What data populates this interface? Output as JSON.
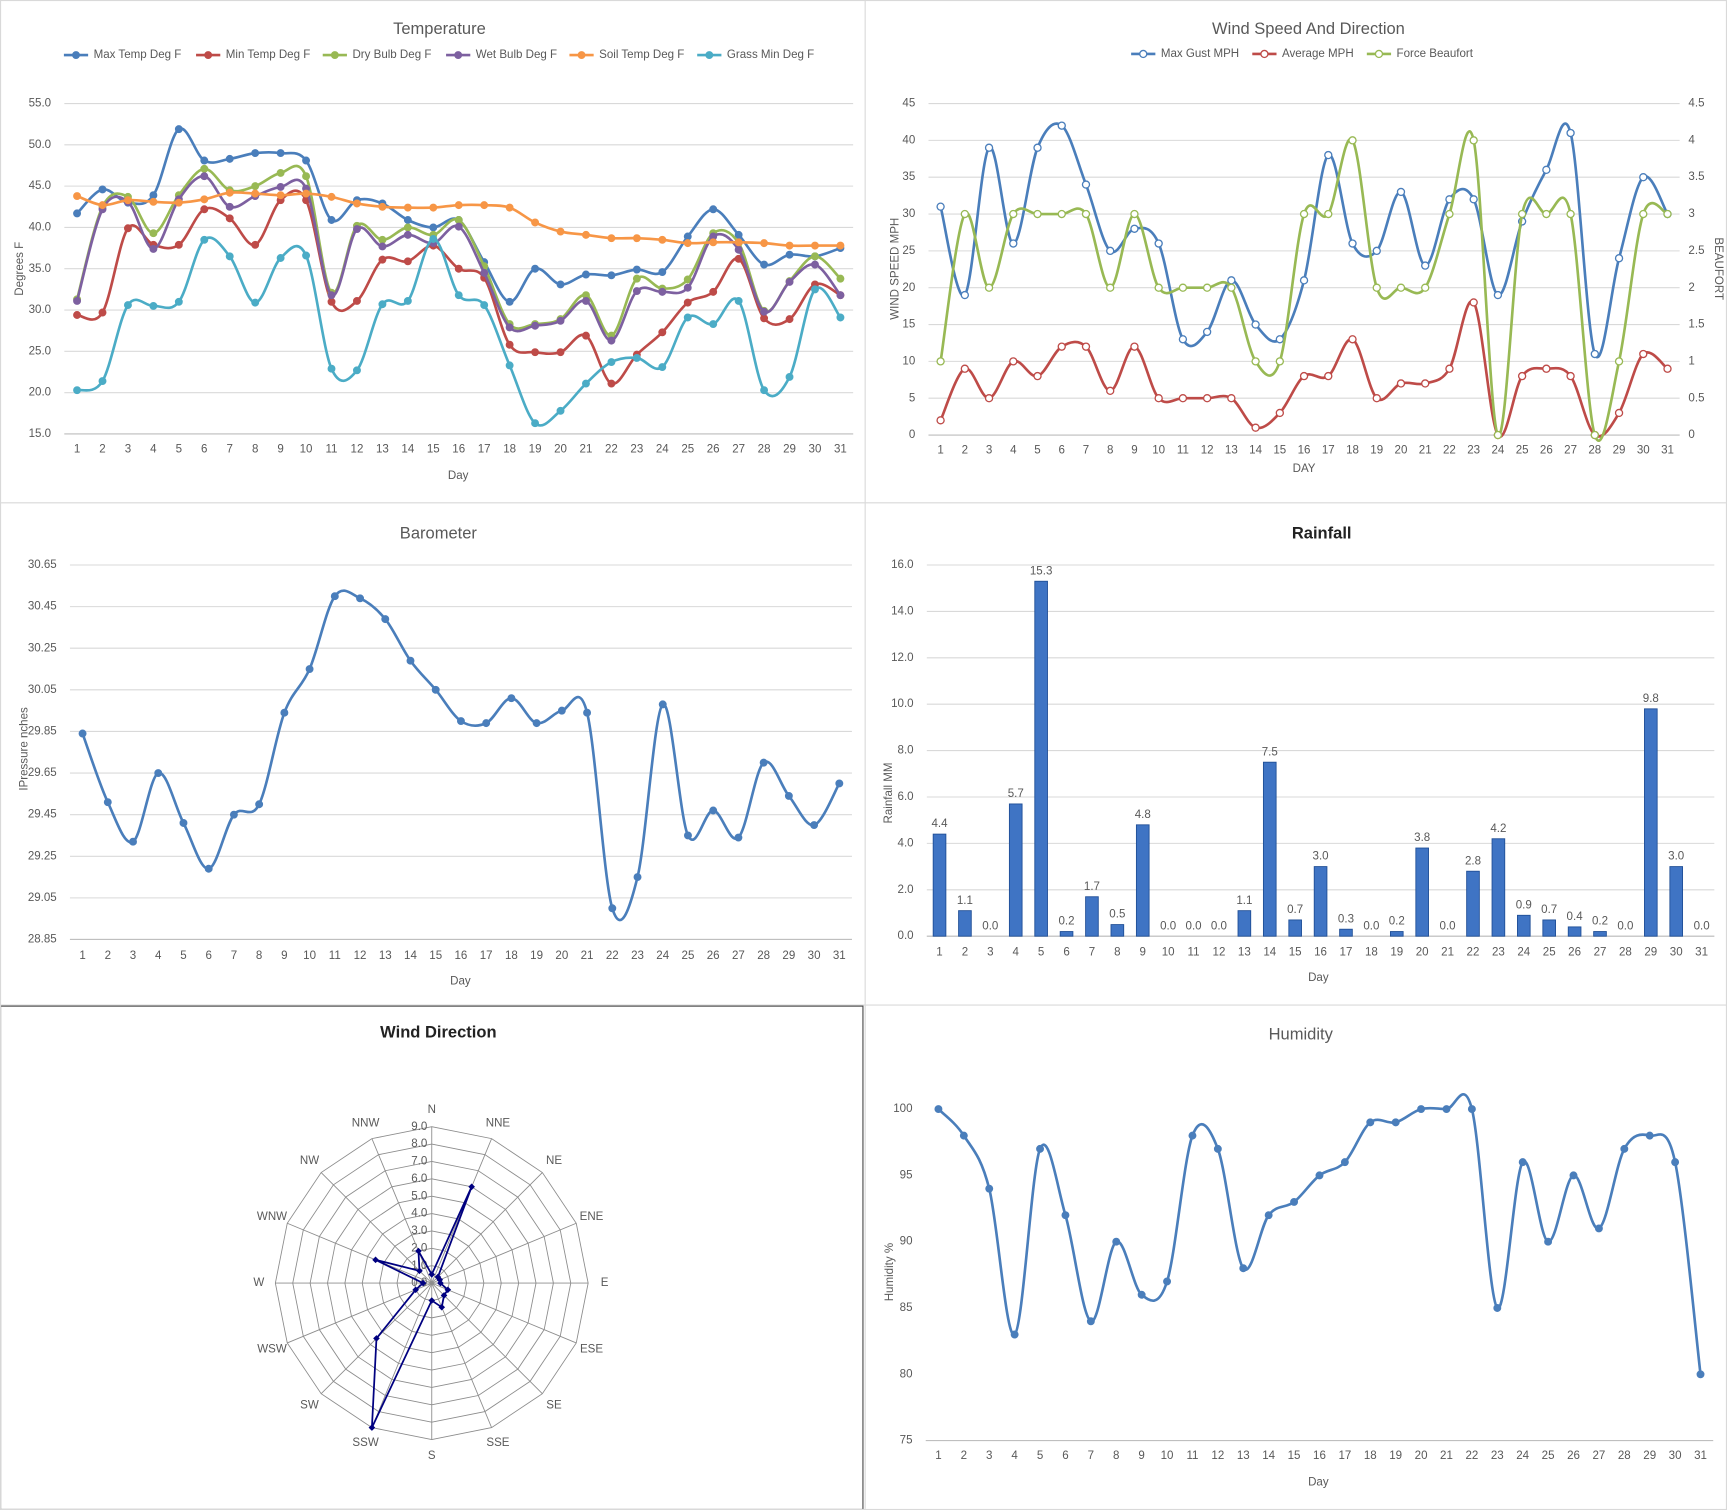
{
  "chart_data": [
    {
      "type": "line",
      "title": "Temperature",
      "x_label": "Day",
      "y_label": "Degrees F",
      "categories": [
        1,
        2,
        3,
        4,
        5,
        6,
        7,
        8,
        9,
        10,
        11,
        12,
        13,
        14,
        15,
        16,
        17,
        18,
        19,
        20,
        21,
        22,
        23,
        24,
        25,
        26,
        27,
        28,
        29,
        30,
        31
      ],
      "ylim": [
        15,
        55
      ],
      "yticks": [
        {
          "value": 15,
          "label": "15.0"
        },
        {
          "value": 20,
          "label": "20.0"
        },
        {
          "value": 25,
          "label": "25.0"
        },
        {
          "value": 30,
          "label": "30.0"
        },
        {
          "value": 35,
          "label": "35.0"
        },
        {
          "value": 40,
          "label": "40.0"
        },
        {
          "value": 45,
          "label": "45.0"
        },
        {
          "value": 50,
          "label": "50.0"
        },
        {
          "value": 55,
          "label": "55.0"
        }
      ],
      "grid": true,
      "legend": "top",
      "series": [
        {
          "name": "Max Temp Deg F",
          "color": "#4a7ebb",
          "values": [
            41.7,
            44.6,
            43.0,
            43.9,
            51.9,
            48.1,
            48.3,
            49.0,
            49.0,
            48.1,
            40.9,
            43.3,
            42.9,
            40.9,
            40.0,
            40.9,
            35.8,
            31.0,
            35.0,
            33.1,
            34.3,
            34.2,
            34.9,
            34.6,
            38.9,
            42.2,
            39.1,
            35.5,
            36.7,
            36.5,
            37.5
          ]
        },
        {
          "name": "Min Temp Deg F",
          "color": "#be4b48",
          "values": [
            29.4,
            29.7,
            39.9,
            37.9,
            37.9,
            42.2,
            41.1,
            37.9,
            43.3,
            43.3,
            31.0,
            31.1,
            36.1,
            35.9,
            37.8,
            35.0,
            33.9,
            25.8,
            24.9,
            24.9,
            26.9,
            21.1,
            24.6,
            27.3,
            30.9,
            32.2,
            36.2,
            29.0,
            28.9,
            33.1,
            31.8
          ]
        },
        {
          "name": "Dry Bulb Deg F",
          "color": "#98b954",
          "values": [
            31.3,
            42.5,
            43.7,
            39.3,
            43.9,
            47.1,
            44.5,
            45.0,
            46.6,
            46.2,
            32.1,
            40.2,
            38.5,
            40.0,
            39.1,
            40.9,
            35.3,
            28.3,
            28.3,
            28.9,
            31.8,
            26.9,
            33.8,
            32.6,
            33.7,
            39.3,
            38.1,
            29.9,
            33.5,
            36.5,
            33.8
          ]
        },
        {
          "name": "Wet Bulb Deg F",
          "color": "#7d60a0",
          "values": [
            31.1,
            42.2,
            43.1,
            37.4,
            43.4,
            46.2,
            42.5,
            43.8,
            44.9,
            44.7,
            31.8,
            39.8,
            37.7,
            39.1,
            38.1,
            40.1,
            34.5,
            27.9,
            28.1,
            28.7,
            31.1,
            26.3,
            32.3,
            32.2,
            32.7,
            38.9,
            37.3,
            29.8,
            33.4,
            35.5,
            31.8
          ]
        },
        {
          "name": "Soil Temp Deg F",
          "color": "#f79646",
          "values": [
            43.8,
            42.7,
            43.3,
            43.1,
            43.0,
            43.4,
            44.2,
            44.1,
            43.9,
            44.1,
            43.7,
            42.9,
            42.5,
            42.4,
            42.4,
            42.7,
            42.7,
            42.4,
            40.6,
            39.5,
            39.1,
            38.7,
            38.7,
            38.5,
            38.1,
            38.2,
            38.2,
            38.1,
            37.8,
            37.8,
            37.8
          ]
        },
        {
          "name": "Grass Min Deg F",
          "color": "#4bacc6",
          "values": [
            20.3,
            21.4,
            30.6,
            30.5,
            31.0,
            38.5,
            36.5,
            30.9,
            36.3,
            36.6,
            22.9,
            22.7,
            30.7,
            31.1,
            38.6,
            31.8,
            30.6,
            23.3,
            16.3,
            17.8,
            21.1,
            23.7,
            24.2,
            23.1,
            29.1,
            28.3,
            31.1,
            20.3,
            21.9,
            32.5,
            29.1
          ]
        }
      ]
    },
    {
      "type": "line",
      "title": "Wind Speed And Direction",
      "x_label": "DAY",
      "y_label": "WIND SPEED MPH",
      "y2_label": "BEAUFORT",
      "categories": [
        1,
        2,
        3,
        4,
        5,
        6,
        7,
        8,
        9,
        10,
        11,
        12,
        13,
        14,
        15,
        16,
        17,
        18,
        19,
        20,
        21,
        22,
        23,
        24,
        25,
        26,
        27,
        28,
        29,
        30,
        31
      ],
      "ylim": [
        0,
        45
      ],
      "yticks": [
        0,
        5,
        10,
        15,
        20,
        25,
        30,
        35,
        40,
        45
      ],
      "y2lim": [
        0,
        4.5
      ],
      "y2ticks": [
        0,
        0.5,
        1,
        1.5,
        2,
        2.5,
        3,
        3.5,
        4,
        4.5
      ],
      "grid": true,
      "legend": "top",
      "series": [
        {
          "name": "Max Gust MPH",
          "color": "#4a7ebb",
          "values": [
            31,
            19,
            39,
            26,
            39,
            42,
            34,
            25,
            28,
            26,
            13,
            14,
            21,
            15,
            13,
            21,
            38,
            26,
            25,
            33,
            23,
            32,
            32,
            19,
            29,
            36,
            41,
            11,
            24,
            35,
            30
          ]
        },
        {
          "name": "Average MPH",
          "color": "#be4b48",
          "values": [
            2,
            9,
            5,
            10,
            8,
            12,
            12,
            6,
            12,
            5,
            5,
            5,
            5,
            1,
            3,
            8,
            8,
            13,
            5,
            7,
            7,
            9,
            18,
            0,
            8,
            9,
            8,
            0,
            3,
            11,
            9
          ]
        },
        {
          "name": "Force Beaufort",
          "color": "#98b954",
          "axis": "y2",
          "values": [
            1,
            3,
            2,
            3,
            3,
            3,
            3,
            2,
            3,
            2,
            2,
            2,
            2,
            1,
            1,
            3,
            3,
            4,
            2,
            2,
            2,
            3,
            4,
            0,
            3,
            3,
            3,
            0,
            1,
            3,
            3
          ]
        }
      ]
    },
    {
      "type": "line",
      "title": "Barometer",
      "x_label": "Day",
      "y_label": "IPressure nches",
      "categories": [
        1,
        2,
        3,
        4,
        5,
        6,
        7,
        8,
        9,
        10,
        11,
        12,
        13,
        14,
        15,
        16,
        17,
        18,
        19,
        20,
        21,
        22,
        23,
        24,
        25,
        26,
        27,
        28,
        29,
        30,
        31
      ],
      "ylim": [
        28.85,
        30.65
      ],
      "yticks": [
        28.85,
        29.05,
        29.25,
        29.45,
        29.65,
        29.85,
        30.05,
        30.25,
        30.45,
        30.65
      ],
      "grid": true,
      "color": "#4a7ebb",
      "values": [
        29.84,
        29.51,
        29.32,
        29.65,
        29.41,
        29.19,
        29.45,
        29.5,
        29.94,
        30.15,
        30.5,
        30.49,
        30.39,
        30.19,
        30.05,
        29.9,
        29.89,
        30.01,
        29.89,
        29.95,
        29.94,
        29.0,
        29.15,
        29.98,
        29.35,
        29.47,
        29.34,
        29.7,
        29.54,
        29.4,
        29.6
      ]
    },
    {
      "type": "bar",
      "title": "Rainfall",
      "x_label": "Day",
      "y_label": "Rainfall MM",
      "categories": [
        1,
        2,
        3,
        4,
        5,
        6,
        7,
        8,
        9,
        10,
        11,
        12,
        13,
        14,
        15,
        16,
        17,
        18,
        19,
        20,
        21,
        22,
        23,
        24,
        25,
        26,
        27,
        28,
        29,
        30,
        31
      ],
      "ylim": [
        0,
        16
      ],
      "yticks": [
        {
          "value": 0,
          "label": "0.0"
        },
        {
          "value": 2,
          "label": "2.0"
        },
        {
          "value": 4,
          "label": "4.0"
        },
        {
          "value": 6,
          "label": "6.0"
        },
        {
          "value": 8,
          "label": "8.0"
        },
        {
          "value": 10,
          "label": "10.0"
        },
        {
          "value": 12,
          "label": "12.0"
        },
        {
          "value": 14,
          "label": "14.0"
        },
        {
          "value": 16,
          "label": "16.0"
        }
      ],
      "grid": true,
      "color": "#3f74c4",
      "values": [
        4.4,
        1.1,
        0,
        5.7,
        15.3,
        0.2,
        1.7,
        0.5,
        4.8,
        0,
        0,
        0,
        1.1,
        7.5,
        0.7,
        3,
        0.3,
        0,
        0.2,
        3.8,
        0,
        2.8,
        4.2,
        0.9,
        0.7,
        0.4,
        0.2,
        0,
        9.8,
        3,
        0
      ],
      "value_labels": [
        "4.4",
        "1.1",
        "0.0",
        "5.7",
        "15.3",
        "0.2",
        "1.7",
        "0.5",
        "4.8",
        "0.0",
        "0.0",
        "0.0",
        "1.1",
        "7.5",
        "0.7",
        "3.0",
        "0.3",
        "0.0",
        "0.2",
        "3.8",
        "0.0",
        "2.8",
        "4.2",
        "0.9",
        "0.7",
        "0.4",
        "0.2",
        "0.0",
        "9.8",
        "3.0",
        "0.0"
      ]
    },
    {
      "type": "radar",
      "title": "Wind Direction",
      "categories": [
        "N",
        "NNE",
        "NE",
        "ENE",
        "E",
        "ESE",
        "SE",
        "SSE",
        "S",
        "SSW",
        "SW",
        "WSW",
        "W",
        "WNW",
        "NW",
        "NNW"
      ],
      "values": [
        0.5,
        6.0,
        0.5,
        0.5,
        0.5,
        1.0,
        1.0,
        1.5,
        1.0,
        9.0,
        4.5,
        1.0,
        0.5,
        3.5,
        1.0,
        2.0
      ],
      "rlim": [
        0,
        9
      ],
      "rticks": [
        {
          "value": 0,
          "label": "0.0"
        },
        {
          "value": 1,
          "label": "1.0"
        },
        {
          "value": 2,
          "label": "2.0"
        },
        {
          "value": 3,
          "label": "3.0"
        },
        {
          "value": 4,
          "label": "4.0"
        },
        {
          "value": 5,
          "label": "5.0"
        },
        {
          "value": 6,
          "label": "6.0"
        },
        {
          "value": 7,
          "label": "7.0"
        },
        {
          "value": 8,
          "label": "8.0"
        },
        {
          "value": 9,
          "label": "9.0"
        }
      ],
      "color": "#000080"
    },
    {
      "type": "line",
      "title": "Humidity",
      "x_label": "Day",
      "y_label": "Humidity %",
      "categories": [
        1,
        2,
        3,
        4,
        5,
        6,
        7,
        8,
        9,
        10,
        11,
        12,
        13,
        14,
        15,
        16,
        17,
        18,
        19,
        20,
        21,
        22,
        23,
        24,
        25,
        26,
        27,
        28,
        29,
        30,
        31
      ],
      "ylim": [
        75,
        100
      ],
      "yticks": [
        75,
        80,
        85,
        90,
        95,
        100
      ],
      "grid": false,
      "color": "#4a7ebb",
      "values": [
        100,
        98,
        94,
        83,
        97,
        92,
        84,
        90,
        86,
        87,
        98,
        97,
        88,
        92,
        93,
        95,
        96,
        99,
        99,
        100,
        100,
        100,
        85,
        96,
        90,
        95,
        91,
        97,
        98,
        96,
        80
      ]
    }
  ]
}
